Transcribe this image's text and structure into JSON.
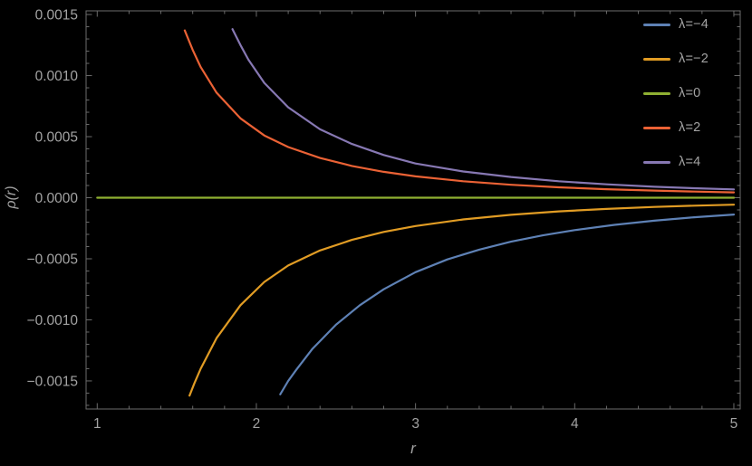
{
  "figure": {
    "background": "#000000",
    "frame_color": "#6b6b6b",
    "tick_color": "#6b6b6b",
    "label_color": "#a3a3a3"
  },
  "chart_data": {
    "type": "line",
    "title": "",
    "xlabel": "r",
    "ylabel": "ρ(r)",
    "xlim": [
      0.93,
      5.04
    ],
    "ylim": [
      -0.00173,
      0.00153
    ],
    "grid": false,
    "legend_position": "top-right",
    "x_ticks": {
      "major": [
        1,
        2,
        3,
        4,
        5
      ],
      "labels": [
        "1",
        "2",
        "3",
        "4",
        "5"
      ],
      "minor_step": 0.2
    },
    "y_ticks": {
      "major": [
        0.0015,
        0.001,
        0.0005,
        0.0,
        -0.0005,
        -0.001,
        -0.0015
      ],
      "labels": [
        "0.0015",
        "0.0010",
        "0.0005",
        "0.0000",
        "−0.0005",
        "−0.0010",
        "−0.0015"
      ],
      "minor_step": 0.0001
    },
    "series": [
      {
        "id": "lambda-neg4",
        "name": "λ=−4",
        "color": "#5e81b5",
        "points": [
          [
            2.15,
            -0.00161
          ],
          [
            2.2,
            -0.0015
          ],
          [
            2.25,
            -0.00141
          ],
          [
            2.35,
            -0.00124
          ],
          [
            2.5,
            -0.00104
          ],
          [
            2.65,
            -0.00088
          ],
          [
            2.8,
            -0.00075
          ],
          [
            3.0,
            -0.00061
          ],
          [
            3.2,
            -0.000505
          ],
          [
            3.4,
            -0.000425
          ],
          [
            3.6,
            -0.00036
          ],
          [
            3.8,
            -0.000308
          ],
          [
            4.0,
            -0.000265
          ],
          [
            4.25,
            -0.000222
          ],
          [
            4.5,
            -0.000188
          ],
          [
            4.75,
            -0.00016
          ],
          [
            5.0,
            -0.000138
          ]
        ]
      },
      {
        "id": "lambda-neg2",
        "name": "λ=−2",
        "color": "#e19c24",
        "points": [
          [
            1.58,
            -0.00162
          ],
          [
            1.61,
            -0.00152
          ],
          [
            1.65,
            -0.0014
          ],
          [
            1.75,
            -0.00115
          ],
          [
            1.9,
            -0.00088
          ],
          [
            2.05,
            -0.00069
          ],
          [
            2.2,
            -0.000555
          ],
          [
            2.4,
            -0.000432
          ],
          [
            2.6,
            -0.000345
          ],
          [
            2.8,
            -0.00028
          ],
          [
            3.0,
            -0.000232
          ],
          [
            3.3,
            -0.000178
          ],
          [
            3.6,
            -0.00014
          ],
          [
            3.9,
            -0.000112
          ],
          [
            4.2,
            -9.15e-05
          ],
          [
            4.5,
            -7.58e-05
          ],
          [
            4.75,
            -6.55e-05
          ],
          [
            5.0,
            -5.72e-05
          ]
        ]
      },
      {
        "id": "lambda-0",
        "name": "λ=0",
        "color": "#8fb032",
        "points": [
          [
            1.0,
            0.0
          ],
          [
            5.0,
            0.0
          ]
        ]
      },
      {
        "id": "lambda-2",
        "name": "λ=2",
        "color": "#eb6235",
        "points": [
          [
            1.55,
            0.00137
          ],
          [
            1.6,
            0.00121
          ],
          [
            1.65,
            0.00107
          ],
          [
            1.75,
            0.00086
          ],
          [
            1.9,
            0.00065
          ],
          [
            2.05,
            0.00051
          ],
          [
            2.2,
            0.000415
          ],
          [
            2.4,
            0.000325
          ],
          [
            2.6,
            0.00026
          ],
          [
            2.8,
            0.000212
          ],
          [
            3.0,
            0.000175
          ],
          [
            3.3,
            0.000135
          ],
          [
            3.6,
            0.000106
          ],
          [
            3.9,
            8.55e-05
          ],
          [
            4.2,
            7e-05
          ],
          [
            4.5,
            5.85e-05
          ],
          [
            4.75,
            5.05e-05
          ],
          [
            5.0,
            4.4e-05
          ]
        ]
      },
      {
        "id": "lambda-4",
        "name": "λ=4",
        "color": "#8778b3",
        "points": [
          [
            1.85,
            0.00138
          ],
          [
            1.9,
            0.00125
          ],
          [
            1.95,
            0.00113
          ],
          [
            2.05,
            0.00094
          ],
          [
            2.2,
            0.00074
          ],
          [
            2.4,
            0.00056
          ],
          [
            2.6,
            0.00044
          ],
          [
            2.8,
            0.00035
          ],
          [
            3.0,
            0.00028
          ],
          [
            3.3,
            0.000215
          ],
          [
            3.6,
            0.00017
          ],
          [
            3.9,
            0.000135
          ],
          [
            4.2,
            0.00011
          ],
          [
            4.5,
            9e-05
          ],
          [
            4.75,
            7.8e-05
          ],
          [
            5.0,
            6.8e-05
          ]
        ]
      }
    ]
  }
}
